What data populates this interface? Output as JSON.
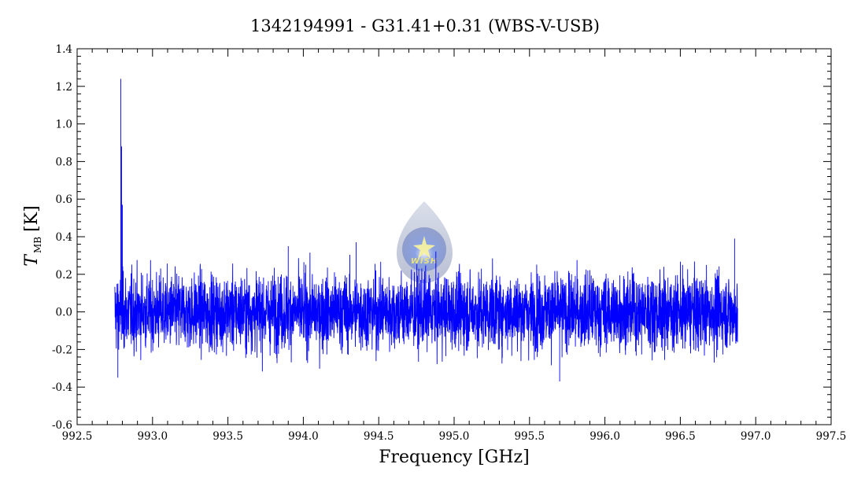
{
  "chart_data": {
    "type": "line",
    "title": "1342194991 - G31.41+0.31 (WBS-V-USB)",
    "xlabel": "Frequency [GHz]",
    "ylabel": {
      "symbol": "T",
      "subscript": "MB",
      "unit": "[K]"
    },
    "xlim": [
      992.5,
      997.5
    ],
    "ylim": [
      -0.6,
      1.4
    ],
    "x_ticks": [
      "992.5",
      "993.0",
      "993.5",
      "994.0",
      "994.5",
      "995.0",
      "995.5",
      "996.0",
      "996.5",
      "997.0",
      "997.5"
    ],
    "y_ticks": [
      "-0.6",
      "-0.4",
      "-0.2",
      "0.0",
      "0.2",
      "0.4",
      "0.6",
      "0.8",
      "1.0",
      "1.2",
      "1.4"
    ],
    "grid": false,
    "series": [
      {
        "color": "#0000ff",
        "x_range": [
          992.75,
          996.88
        ],
        "baseline": 0.0,
        "noise_rms": 0.1,
        "features": [
          {
            "x": 992.79,
            "y": 1.24
          },
          {
            "x": 992.795,
            "y": 0.88
          },
          {
            "x": 992.8,
            "y": 0.57
          },
          {
            "x": 992.77,
            "y": -0.35
          },
          {
            "x": 993.9,
            "y": 0.35
          },
          {
            "x": 994.35,
            "y": 0.37
          },
          {
            "x": 995.7,
            "y": -0.37
          },
          {
            "x": 996.86,
            "y": 0.39
          }
        ]
      }
    ]
  },
  "logo": {
    "text": "WISH",
    "name": "wish-logo"
  }
}
